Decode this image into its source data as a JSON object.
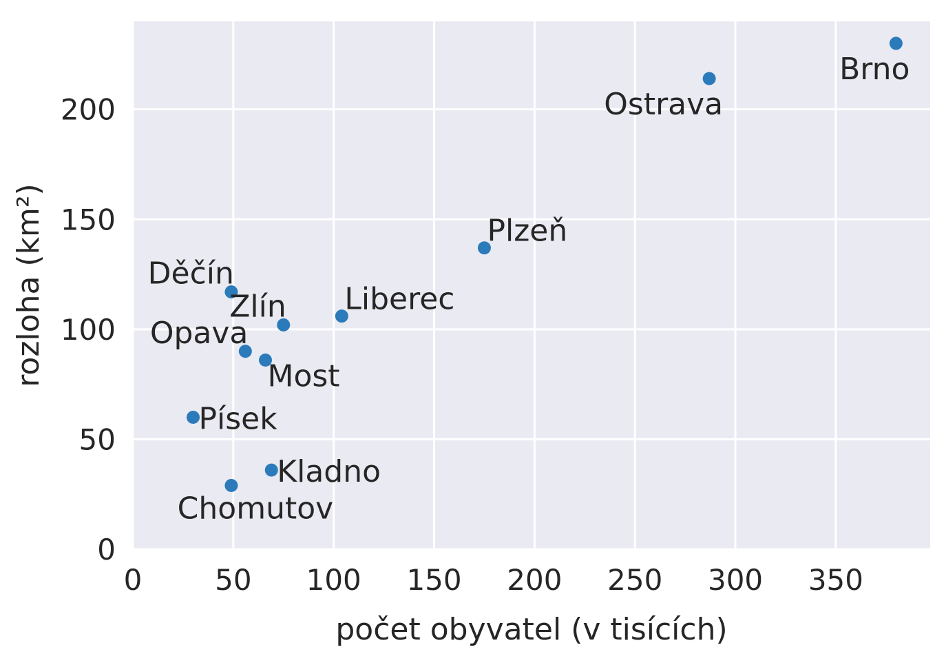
{
  "chart_data": {
    "type": "scatter",
    "title": "",
    "xlabel": "počet obyvatel (v tisících)",
    "ylabel": "rozloha (km²)",
    "xlim": [
      0,
      397
    ],
    "ylim": [
      0,
      240
    ],
    "xticks": [
      0,
      50,
      100,
      150,
      200,
      250,
      300,
      350
    ],
    "yticks": [
      0,
      50,
      100,
      150,
      200
    ],
    "grid": true,
    "point_color": "#2b7bba",
    "background_color": "#eaeaf2",
    "grid_color": "#ffffff",
    "points": [
      {
        "label": "Brno",
        "x": 380,
        "y": 230,
        "label_pos": "below-left"
      },
      {
        "label": "Ostrava",
        "x": 287,
        "y": 214,
        "label_pos": "below-left"
      },
      {
        "label": "Plzeň",
        "x": 175,
        "y": 137,
        "label_pos": "above-right"
      },
      {
        "label": "Liberec",
        "x": 104,
        "y": 106,
        "label_pos": "above-right"
      },
      {
        "label": "Zlín",
        "x": 75,
        "y": 102,
        "label_pos": "above-left"
      },
      {
        "label": "Děčín",
        "x": 49,
        "y": 117,
        "label_pos": "above-left"
      },
      {
        "label": "Opava",
        "x": 56,
        "y": 90,
        "label_pos": "above-left"
      },
      {
        "label": "Most",
        "x": 66,
        "y": 86,
        "label_pos": "below-right"
      },
      {
        "label": "Písek",
        "x": 30,
        "y": 60,
        "label_pos": "right"
      },
      {
        "label": "Kladno",
        "x": 69,
        "y": 36,
        "label_pos": "right"
      },
      {
        "label": "Chomutov",
        "x": 49,
        "y": 29,
        "label_pos": "below-center"
      }
    ]
  }
}
